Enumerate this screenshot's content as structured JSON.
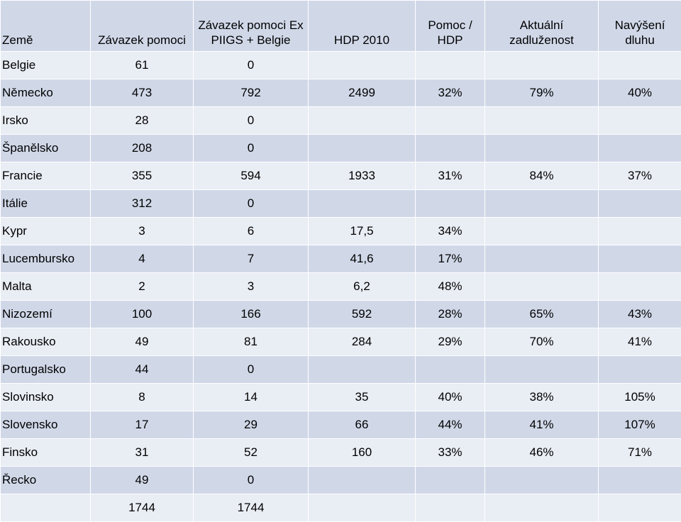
{
  "headers": [
    "Země",
    "Závazek pomoci",
    "Závazek pomoci Ex PIIGS + Belgie",
    "HDP 2010",
    "Pomoc / HDP",
    "Aktuální zadluženost",
    "Navýšení dluhu"
  ],
  "rows": [
    [
      "Belgie",
      "61",
      "0",
      "",
      "",
      "",
      ""
    ],
    [
      "Německo",
      "473",
      "792",
      "2499",
      "32%",
      "79%",
      "40%"
    ],
    [
      "Irsko",
      "28",
      "0",
      "",
      "",
      "",
      ""
    ],
    [
      "Španělsko",
      "208",
      "0",
      "",
      "",
      "",
      ""
    ],
    [
      "Francie",
      "355",
      "594",
      "1933",
      "31%",
      "84%",
      "37%"
    ],
    [
      "Itálie",
      "312",
      "0",
      "",
      "",
      "",
      ""
    ],
    [
      "Kypr",
      "3",
      "6",
      "17,5",
      "34%",
      "",
      ""
    ],
    [
      "Lucembursko",
      "4",
      "7",
      "41,6",
      "17%",
      "",
      ""
    ],
    [
      "Malta",
      "2",
      "3",
      "6,2",
      "48%",
      "",
      ""
    ],
    [
      "Nizozemí",
      "100",
      "166",
      "592",
      "28%",
      "65%",
      "43%"
    ],
    [
      "Rakousko",
      "49",
      "81",
      "284",
      "29%",
      "70%",
      "41%"
    ],
    [
      "Portugalsko",
      "44",
      "0",
      "",
      "",
      "",
      ""
    ],
    [
      "Slovinsko",
      "8",
      "14",
      "35",
      "40%",
      "38%",
      "105%"
    ],
    [
      "Slovensko",
      "17",
      "29",
      "66",
      "44%",
      "41%",
      "107%"
    ],
    [
      "Finsko",
      "31",
      "52",
      "160",
      "33%",
      "46%",
      "71%"
    ],
    [
      "Řecko",
      "49",
      "0",
      "",
      "",
      "",
      ""
    ],
    [
      "",
      "1744",
      "1744",
      "",
      "",
      "",
      ""
    ]
  ]
}
